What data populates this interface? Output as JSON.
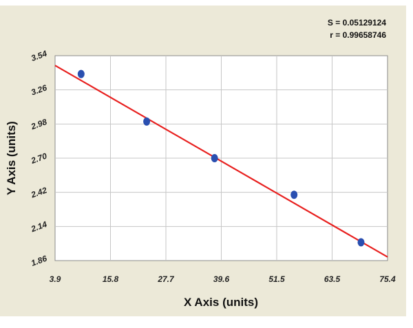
{
  "chart_data": {
    "type": "scatter",
    "title": "",
    "xlabel": "X Axis (units)",
    "ylabel": "Y Axis (units)",
    "xlim": [
      3.9,
      75.4
    ],
    "ylim": [
      1.86,
      3.54
    ],
    "x_ticks": [
      "3.9",
      "15.8",
      "27.7",
      "39.6",
      "51.5",
      "63.5",
      "75.4"
    ],
    "y_ticks": [
      "1.86",
      "2.14",
      "2.42",
      "2.70",
      "2.98",
      "3.26",
      "3.54"
    ],
    "grid": true,
    "points": [
      {
        "x": 9.5,
        "y": 3.39
      },
      {
        "x": 23.6,
        "y": 3.0
      },
      {
        "x": 38.2,
        "y": 2.7
      },
      {
        "x": 55.3,
        "y": 2.4
      },
      {
        "x": 69.7,
        "y": 2.01
      }
    ],
    "fit_line": {
      "x": [
        3.9,
        75.4
      ],
      "y": [
        3.46,
        1.89
      ]
    },
    "stats": [
      "S = 0.05129124",
      "r = 0.99658746"
    ],
    "colors": {
      "point": "#2a4fb0",
      "fit_line": "#e8201f",
      "grid": "#c6c6c6",
      "plot_bg": "#ffffff",
      "frame_bg": "#ece9d8"
    }
  }
}
